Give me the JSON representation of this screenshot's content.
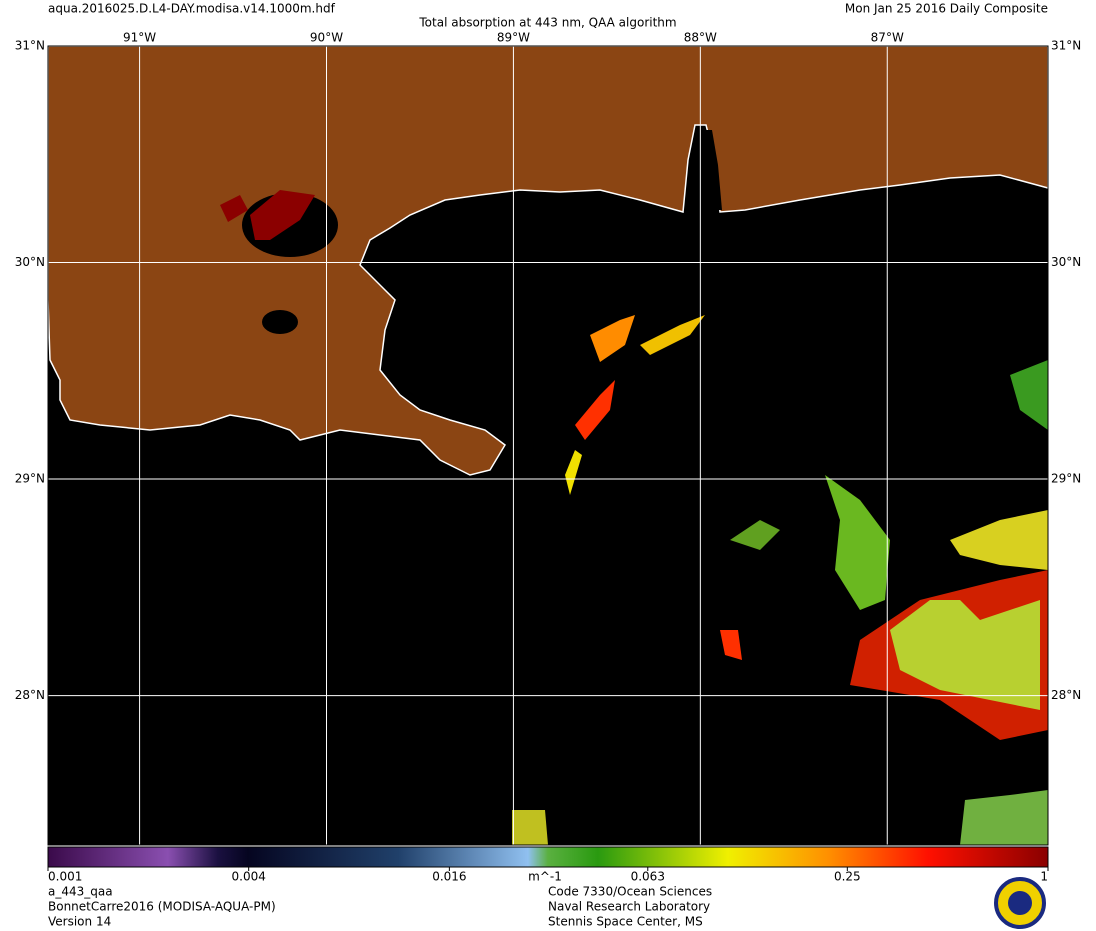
{
  "header": {
    "file": "aqua.2016025.D.L4-DAY.modisa.v14.1000m.hdf",
    "title": "Total absorption at 443 nm, QAA algorithm",
    "date": "Mon Jan 25 2016 Daily Composite"
  },
  "graticule": {
    "lon_lim": [
      -91.49,
      -86.14
    ],
    "lat_lim": [
      27.31,
      31.0
    ],
    "lon_ticks": [
      {
        "value": -91,
        "label": "91°W"
      },
      {
        "value": -90,
        "label": "90°W"
      },
      {
        "value": -89,
        "label": "89°W"
      },
      {
        "value": -88,
        "label": "88°W"
      },
      {
        "value": -87,
        "label": "87°W"
      }
    ],
    "lat_ticks": [
      {
        "value": 31,
        "label": "31°N"
      },
      {
        "value": 30,
        "label": "30°N"
      },
      {
        "value": 29,
        "label": "29°N"
      },
      {
        "value": 28,
        "label": "28°N"
      }
    ]
  },
  "colorbar": {
    "scale": "log",
    "lim": [
      0.001,
      1
    ],
    "ticks": [
      0.001,
      0.004,
      0.016,
      0.063,
      0.25,
      1
    ],
    "unit": "m^-1"
  },
  "footer": {
    "left": [
      "a_443_qaa",
      "BonnetCarre2016 (MODISA-AQUA-PM)",
      "Version 14"
    ],
    "center": [
      "Code 7330/Ocean Sciences",
      "Naval Research Laboratory",
      "Stennis Space Center, MS"
    ]
  }
}
